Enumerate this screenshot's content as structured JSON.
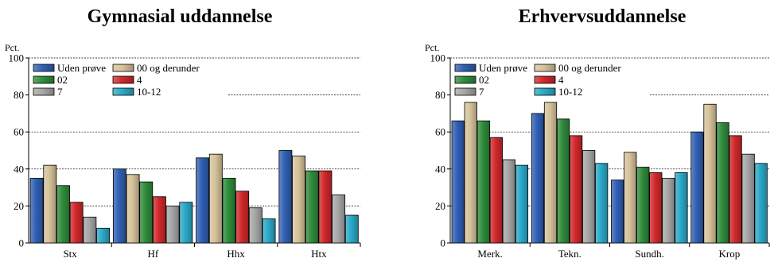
{
  "chart_data": [
    {
      "type": "bar",
      "title": "Gymnasial uddannelse",
      "ylabel": "Pct.",
      "ylim": [
        0,
        100
      ],
      "yticks": [
        "0",
        "20",
        "40",
        "60",
        "80",
        "100"
      ],
      "grid": "dashed horizontal",
      "legend": "top-left",
      "categories": [
        "Stx",
        "Hf",
        "Hhx",
        "Htx"
      ],
      "series": [
        {
          "name": "Uden prøve",
          "color": "#2f5fb3",
          "values": [
            35,
            40,
            46,
            50
          ]
        },
        {
          "name": "00 og derunder",
          "color": "#d6c29a",
          "values": [
            42,
            37,
            48,
            47
          ]
        },
        {
          "name": "02",
          "color": "#2e8b3a",
          "values": [
            31,
            33,
            35,
            39
          ]
        },
        {
          "name": "4",
          "color": "#d0282a",
          "values": [
            22,
            25,
            28,
            39
          ]
        },
        {
          "name": "7",
          "color": "#a6a6a6",
          "values": [
            14,
            20,
            19,
            26
          ]
        },
        {
          "name": "10-12",
          "color": "#2aa8c8",
          "values": [
            8,
            22,
            13,
            15
          ]
        }
      ]
    },
    {
      "type": "bar",
      "title": "Erhvervsuddannelse",
      "ylabel": "Pct.",
      "ylim": [
        0,
        100
      ],
      "yticks": [
        "0",
        "20",
        "40",
        "60",
        "80",
        "100"
      ],
      "grid": "dashed horizontal",
      "legend": "top-left",
      "categories": [
        "Merk.",
        "Tekn.",
        "Sundh.",
        "Krop"
      ],
      "series": [
        {
          "name": "Uden prøve",
          "color": "#2f5fb3",
          "values": [
            66,
            70,
            34,
            60
          ]
        },
        {
          "name": "00 og derunder",
          "color": "#d6c29a",
          "values": [
            76,
            76,
            49,
            75
          ]
        },
        {
          "name": "02",
          "color": "#2e8b3a",
          "values": [
            66,
            67,
            41,
            65
          ]
        },
        {
          "name": "4",
          "color": "#d0282a",
          "values": [
            57,
            58,
            38,
            58
          ]
        },
        {
          "name": "7",
          "color": "#a6a6a6",
          "values": [
            45,
            50,
            35,
            48
          ]
        },
        {
          "name": "10-12",
          "color": "#2aa8c8",
          "values": [
            42,
            43,
            38,
            43
          ]
        }
      ]
    }
  ]
}
